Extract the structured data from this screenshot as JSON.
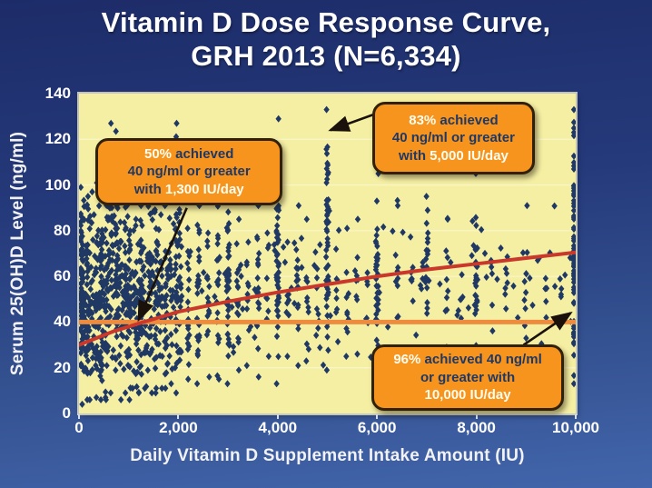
{
  "title": {
    "line1": "Vitamin D Dose Response Curve,",
    "line2": "GRH 2013 (N=6,334)"
  },
  "colors": {
    "slide_bg_top": "#1d2c69",
    "slide_bg_bottom": "#4265ab",
    "title_text": "#ffffff",
    "plot_bg": "#f5efa3",
    "gridline": "#ffffff",
    "marker": "#1f3864",
    "trend_line": "#c9382a",
    "threshold_line": "#ef8b3c",
    "annotation_bg": "#f7941e",
    "annotation_border": "#32210a",
    "annotation_text": "#1f3864",
    "annotation_highlight": "#fffdf0",
    "arrow": "#1a120a",
    "axis_text": "#ffffff"
  },
  "chart_data": {
    "type": "scatter",
    "title": "Vitamin D Dose Response Curve, GRH 2013 (N=6,334)",
    "n_label": "N=6,334",
    "xlabel": "Daily Vitamin D Supplement Intake Amount (IU)",
    "ylabel": "Serum 25(OH)D Level (ng/ml)",
    "xlim": [
      0,
      10000
    ],
    "ylim": [
      0,
      140
    ],
    "xticks": [
      0,
      2000,
      4000,
      6000,
      8000,
      10000
    ],
    "xtick_labels": [
      "0",
      "2,000",
      "4,000",
      "6,000",
      "8,000",
      "10,000"
    ],
    "yticks": [
      0,
      20,
      40,
      60,
      80,
      100,
      120,
      140
    ],
    "ytick_labels": [
      "0",
      "20",
      "40",
      "60",
      "80",
      "100",
      "120",
      "140"
    ],
    "grid": "horizontal-only",
    "legend": "none",
    "marker": {
      "shape": "diamond",
      "half_w": 3.2,
      "half_h": 4.0
    },
    "threshold_line": {
      "y": 40,
      "width": 5,
      "meaning": "40 ng/ml target level"
    },
    "trend_line": {
      "width": 4,
      "points": [
        [
          0,
          30
        ],
        [
          700,
          36
        ],
        [
          1300,
          40
        ],
        [
          2000,
          44.5
        ],
        [
          3000,
          49
        ],
        [
          4000,
          53
        ],
        [
          5000,
          56.5
        ],
        [
          6000,
          60
        ],
        [
          7000,
          63
        ],
        [
          8000,
          65.5
        ],
        [
          9000,
          68
        ],
        [
          10000,
          70.5
        ]
      ]
    },
    "scatter_spec": {
      "seed": 20130604,
      "comment": "columns are [dose_IU, n_points, y_min, y_max]; dense cloud below 2100 IU",
      "low_dose_x_jitter": 70,
      "high_dose_x_jitter": 26,
      "columns": [
        [
          30,
          75,
          3,
          100
        ],
        [
          120,
          40,
          5,
          96
        ],
        [
          200,
          48,
          5,
          98
        ],
        [
          300,
          36,
          6,
          88
        ],
        [
          400,
          52,
          5,
          102
        ],
        [
          500,
          46,
          6,
          96
        ],
        [
          600,
          42,
          5,
          112
        ],
        [
          700,
          30,
          8,
          128
        ],
        [
          800,
          46,
          5,
          100
        ],
        [
          900,
          26,
          8,
          92
        ],
        [
          1000,
          56,
          5,
          106
        ],
        [
          1100,
          24,
          10,
          86
        ],
        [
          1200,
          42,
          8,
          96
        ],
        [
          1300,
          30,
          10,
          92
        ],
        [
          1400,
          34,
          8,
          96
        ],
        [
          1500,
          30,
          10,
          100
        ],
        [
          1600,
          34,
          8,
          96
        ],
        [
          1700,
          18,
          10,
          88
        ],
        [
          1800,
          30,
          10,
          92
        ],
        [
          1900,
          16,
          12,
          84
        ],
        [
          2000,
          58,
          8,
          128
        ],
        [
          2200,
          20,
          14,
          82
        ],
        [
          2400,
          26,
          12,
          92
        ],
        [
          2600,
          15,
          15,
          80
        ],
        [
          2800,
          20,
          14,
          96
        ],
        [
          3000,
          44,
          12,
          102
        ],
        [
          3200,
          16,
          18,
          86
        ],
        [
          3400,
          10,
          20,
          76
        ],
        [
          3600,
          18,
          15,
          92
        ],
        [
          3800,
          8,
          24,
          80
        ],
        [
          4000,
          46,
          12,
          130
        ],
        [
          4200,
          8,
          24,
          76
        ],
        [
          4400,
          14,
          20,
          92
        ],
        [
          4600,
          10,
          22,
          86
        ],
        [
          4800,
          6,
          25,
          70
        ],
        [
          5000,
          56,
          18,
          134
        ],
        [
          5200,
          6,
          25,
          78
        ],
        [
          5400,
          10,
          24,
          82
        ],
        [
          5600,
          8,
          25,
          86
        ],
        [
          5800,
          5,
          28,
          72
        ],
        [
          6000,
          40,
          15,
          106
        ],
        [
          6400,
          10,
          24,
          92
        ],
        [
          6700,
          6,
          28,
          80
        ],
        [
          7000,
          18,
          24,
          96
        ],
        [
          7400,
          8,
          28,
          86
        ],
        [
          7700,
          5,
          30,
          78
        ],
        [
          8000,
          30,
          20,
          110
        ],
        [
          8300,
          5,
          30,
          76
        ],
        [
          8600,
          7,
          28,
          82
        ],
        [
          9000,
          9,
          28,
          92
        ],
        [
          9400,
          5,
          32,
          76
        ],
        [
          9700,
          4,
          34,
          70
        ],
        [
          10000,
          65,
          12,
          134
        ]
      ],
      "extras": {
        "n": 100,
        "x": [
          2100,
          9900
        ],
        "y": [
          18,
          96
        ]
      }
    },
    "annotations": [
      {
        "id": "annotation-50pct",
        "lines": [
          [
            {
              "t": "50%",
              "hl": true
            },
            {
              "t": " achieved",
              "hl": false
            }
          ],
          [
            {
              "t": "40 ng/ml or greater",
              "hl": false
            }
          ],
          [
            {
              "t": "with ",
              "hl": false
            },
            {
              "t": "1,300 IU/day",
              "hl": true
            }
          ]
        ],
        "box_data": {
          "x0": 330,
          "x1": 4100,
          "y0": 91,
          "y1": 120.5
        },
        "arrow": {
          "from": [
            2170,
            90
          ],
          "to": [
            1200,
            41
          ]
        }
      },
      {
        "id": "annotation-83pct",
        "lines": [
          [
            {
              "t": "83%",
              "hl": true
            },
            {
              "t": " achieved",
              "hl": false
            }
          ],
          [
            {
              "t": "40 ng/ml or greater",
              "hl": false
            }
          ],
          [
            {
              "t": "with ",
              "hl": false
            },
            {
              "t": "5,000 IU/day",
              "hl": true
            }
          ]
        ],
        "box_data": {
          "x0": 5910,
          "x1": 9170,
          "y0": 104.5,
          "y1": 136.5
        },
        "arrow": {
          "from": [
            5950,
            131
          ],
          "to": [
            5060,
            124
          ]
        }
      },
      {
        "id": "annotation-96pct",
        "lines": [
          [
            {
              "t": "96%",
              "hl": true
            },
            {
              "t": " achieved 40 ng/ml",
              "hl": false
            }
          ],
          [
            {
              "t": "or greater with",
              "hl": false
            }
          ],
          [
            {
              "t": "10,000 IU/day",
              "hl": true
            }
          ]
        ],
        "box_data": {
          "x0": 5890,
          "x1": 9760,
          "y0": 1.2,
          "y1": 30.2
        },
        "arrow": {
          "from": [
            8950,
            30
          ],
          "to": [
            9900,
            44
          ]
        }
      }
    ]
  }
}
